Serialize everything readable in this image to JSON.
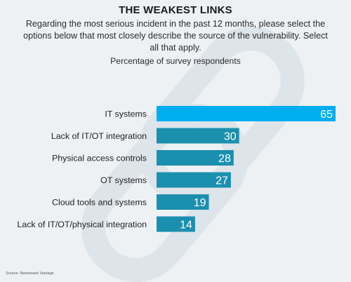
{
  "header": {
    "title": "THE WEAKEST LINKS",
    "subtitle": "Regarding the most serious incident in the past 12 months, please select the options below that most closely describe the source of the vulnerability. Select all that apply.",
    "axis_caption": "Percentage of survey respondents"
  },
  "footer": {
    "source": "Source: Newsweek Vantage"
  },
  "colors": {
    "highlight": "#00aeef",
    "bar": "#1b8fae",
    "label": "#222222",
    "value_text": "#ffffff"
  },
  "chart_data": {
    "type": "bar",
    "orientation": "horizontal",
    "title": "THE WEAKEST LINKS",
    "xlabel": "Percentage of survey respondents",
    "categories": [
      "IT systems",
      "Lack of IT/OT integration",
      "Physical access controls",
      "OT systems",
      "Cloud tools and systems",
      "Lack of IT/OT/physical integration"
    ],
    "values": [
      65,
      30,
      28,
      27,
      19,
      14
    ],
    "xlim": [
      0,
      65
    ],
    "grid": false,
    "legend": "none"
  }
}
